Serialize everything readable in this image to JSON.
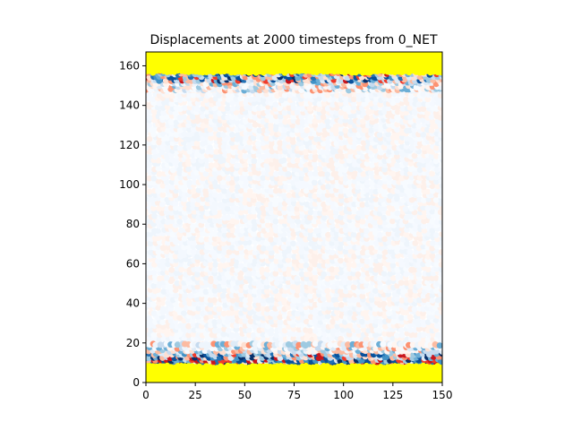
{
  "chart_data": {
    "type": "scatter",
    "title": "Displacements at 2000 timesteps from 0_NET",
    "xlabel": "",
    "ylabel": "",
    "xlim": [
      0,
      150
    ],
    "ylim": [
      0,
      167
    ],
    "x_ticks": [
      0,
      25,
      50,
      75,
      100,
      125,
      150
    ],
    "y_ticks": [
      0,
      20,
      40,
      60,
      80,
      100,
      120,
      140,
      160
    ],
    "grid": false,
    "colormap": "diverging red-white-blue",
    "colors": {
      "fixed_boundary": "#ffff00",
      "neutral": "#f5f9ff",
      "positive_strong": "#c8161e",
      "positive_mild": "#fcbba1",
      "negative_mild": "#9ecae1",
      "negative_strong": "#08519c"
    },
    "regions": [
      {
        "name": "bottom-boundary",
        "y_range": [
          0,
          8
        ],
        "color": "fixed_boundary"
      },
      {
        "name": "bottom-active-band",
        "y_range": [
          8,
          20
        ]
      },
      {
        "name": "interior",
        "y_range": [
          20,
          148
        ],
        "color": "neutral"
      },
      {
        "name": "top-active-band",
        "y_range": [
          148,
          160
        ]
      },
      {
        "name": "top-boundary",
        "y_range": [
          157,
          167
        ],
        "color": "fixed_boundary"
      }
    ]
  }
}
